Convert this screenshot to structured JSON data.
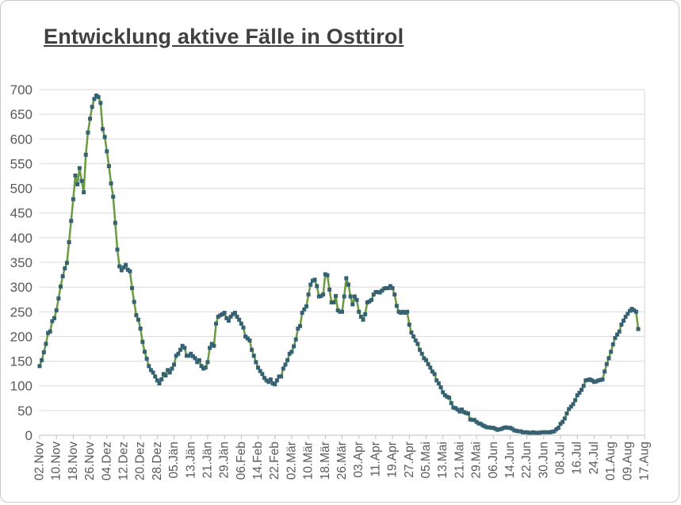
{
  "title": "Entwicklung aktive Fälle in Osttirol",
  "chart_data": {
    "type": "line",
    "title": "Entwicklung aktive Fälle in Osttirol",
    "xlabel": "",
    "ylabel": "",
    "legend": "none",
    "grid": "horizontal",
    "ylim": [
      0,
      700
    ],
    "y_tick_step": 50,
    "y_ticks": [
      0,
      50,
      100,
      150,
      200,
      250,
      300,
      350,
      400,
      450,
      500,
      550,
      600,
      650,
      700
    ],
    "x_tick_step_days": 8,
    "x_domain_days": 289,
    "x_tick_labels": [
      "02.Nov",
      "10.Nov",
      "18.Nov",
      "26.Nov",
      "04.Dez",
      "12.Dez",
      "20.Dez",
      "28.Dez",
      "05.Jän",
      "13.Jän",
      "21.Jän",
      "29.Jän",
      "06.Feb",
      "14.Feb",
      "22.Feb",
      "02.Mär",
      "10.Mär",
      "18.Mär",
      "26.Mär",
      "03.Apr",
      "11.Apr",
      "19.Apr",
      "27.Apr",
      "05.Mai",
      "13.Mai",
      "21.Mai",
      "29.Mai",
      "06.Jun",
      "14.Jun",
      "22.Jun",
      "30.Jun",
      "08.Jul",
      "16.Jul",
      "24.Jul",
      "01.Aug",
      "09.Aug",
      "17.Aug"
    ],
    "series": [
      {
        "name": "aktive Fälle",
        "start_label": "02.Nov",
        "values": [
          140,
          152,
          168,
          185,
          207,
          210,
          231,
          237,
          253,
          277,
          301,
          322,
          338,
          349,
          391,
          434,
          478,
          526,
          508,
          541,
          515,
          492,
          568,
          613,
          641,
          665,
          681,
          688,
          685,
          673,
          620,
          604,
          575,
          545,
          510,
          483,
          430,
          376,
          342,
          334,
          340,
          345,
          335,
          332,
          298,
          270,
          243,
          234,
          216,
          189,
          169,
          155,
          140,
          132,
          127,
          119,
          111,
          105,
          113,
          124,
          121,
          132,
          127,
          135,
          143,
          161,
          165,
          173,
          181,
          177,
          161,
          161,
          165,
          160,
          156,
          148,
          152,
          140,
          135,
          137,
          148,
          177,
          185,
          181,
          226,
          240,
          243,
          245,
          248,
          237,
          232,
          240,
          245,
          248,
          240,
          234,
          226,
          218,
          200,
          196,
          192,
          173,
          161,
          148,
          137,
          130,
          124,
          116,
          111,
          108,
          113,
          105,
          103,
          111,
          119,
          119,
          135,
          143,
          152,
          165,
          169,
          180,
          194,
          216,
          221,
          248,
          255,
          261,
          285,
          305,
          313,
          315,
          302,
          281,
          282,
          285,
          326,
          324,
          295,
          269,
          269,
          282,
          253,
          250,
          250,
          281,
          318,
          305,
          281,
          265,
          281,
          274,
          250,
          240,
          234,
          245,
          269,
          271,
          274,
          285,
          290,
          290,
          289,
          293,
          297,
          298,
          298,
          302,
          298,
          285,
          262,
          250,
          248,
          250,
          248,
          250,
          224,
          208,
          200,
          192,
          185,
          173,
          165,
          156,
          152,
          144,
          137,
          129,
          124,
          111,
          105,
          97,
          87,
          81,
          78,
          76,
          65,
          56,
          55,
          52,
          48,
          52,
          47,
          45,
          44,
          32,
          31,
          31,
          27,
          24,
          23,
          20,
          18,
          16,
          16,
          15,
          15,
          13,
          11,
          12,
          13,
          15,
          16,
          15,
          15,
          13,
          10,
          9,
          8,
          8,
          6,
          6,
          6,
          5,
          5,
          6,
          5,
          5,
          5,
          6,
          6,
          6,
          6,
          6,
          7,
          8,
          12,
          15,
          23,
          27,
          34,
          44,
          53,
          58,
          63,
          71,
          81,
          86,
          92,
          100,
          111,
          112,
          113,
          111,
          108,
          109,
          111,
          112,
          113,
          129,
          144,
          156,
          169,
          184,
          197,
          204,
          210,
          224,
          232,
          240,
          246,
          252,
          256,
          253,
          250,
          215
        ]
      }
    ],
    "colors": {
      "line": "#6b9a40",
      "marker": "#356273",
      "gridline": "#d9d9d9",
      "axis": "#bfbfbf",
      "tick_label": "#595959",
      "title": "#404040",
      "background": "#ffffff",
      "frame_border": "#c9c9c9"
    }
  }
}
